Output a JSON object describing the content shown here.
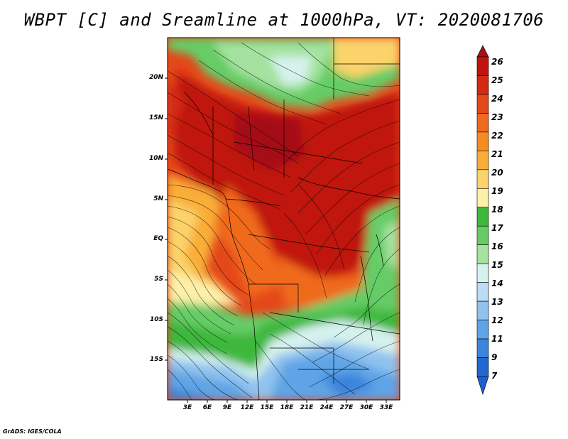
{
  "title": "WBPT [C] and Sreamline at 1000hPa, VT: 2020081706",
  "credit": "GrADS: IGES/COLA",
  "map": {
    "variable": "WBPT [C]",
    "level": "1000hPa",
    "valid_time": "2020081706",
    "lat_range": [
      -20,
      25
    ],
    "lon_range": [
      0,
      35
    ],
    "lat_ticks": [
      "20N",
      "15N",
      "10N",
      "5N",
      "EQ",
      "5S",
      "10S",
      "15S"
    ],
    "lon_ticks": [
      "3E",
      "6E",
      "9E",
      "12E",
      "15E",
      "18E",
      "21E",
      "24E",
      "27E",
      "30E",
      "33E"
    ]
  },
  "colorbar": {
    "levels": [
      "26",
      "25",
      "24",
      "23",
      "22",
      "21",
      "20",
      "19",
      "18",
      "17",
      "16",
      "15",
      "14",
      "13",
      "12",
      "11",
      "9",
      "7"
    ],
    "colors": [
      "#a50f15",
      "#c0150f",
      "#d42a12",
      "#e4481a",
      "#f06a1e",
      "#f68c20",
      "#f9ae38",
      "#fbd36a",
      "#fdf0a8",
      "#3db83d",
      "#66cc66",
      "#a5e2a0",
      "#d6f2ee",
      "#bcdcf5",
      "#8fc2ee",
      "#5ea4e6",
      "#3a86dc",
      "#2266cf",
      "#1f5fcc"
    ]
  }
}
